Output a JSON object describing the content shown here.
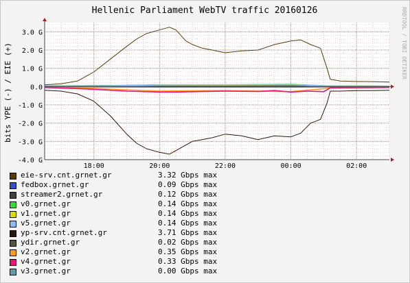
{
  "chart_data": {
    "type": "area",
    "title": "Hellenic Parliament WebTV traffic 20160126",
    "ylabel": "bits YPE (-) / EIE (+)",
    "watermark": "RRDTOOL / TOBI OETIKER",
    "ylim": [
      -4.0,
      3.5
    ],
    "yticks": [
      3.0,
      2.0,
      1.0,
      0.0,
      -1.0,
      -2.0,
      -3.0,
      -4.0
    ],
    "ytick_labels": [
      "3.0 G",
      "2.0 G",
      "1.0 G",
      "0.0",
      "-1.0 G",
      "-2.0 G",
      "-3.0 G",
      "-4.0 G"
    ],
    "xlim_hours": [
      16.5,
      27.0
    ],
    "xticks_hours": [
      18,
      20,
      22,
      24,
      26
    ],
    "xtick_labels": [
      "18:00",
      "20:00",
      "22:00",
      "00:00",
      "02:00"
    ],
    "grid": true,
    "legend_position": "bottom",
    "series": [
      {
        "name": "eie-srv.cnt.grnet.gr",
        "color": "#5a3a0a",
        "max": "3.32 Gbps max",
        "x": [
          16.5,
          17.0,
          17.5,
          18.0,
          18.5,
          19.0,
          19.3,
          19.6,
          20.0,
          20.3,
          20.5,
          20.8,
          21.0,
          21.3,
          21.6,
          22.0,
          22.5,
          23.0,
          23.5,
          24.0,
          24.3,
          24.6,
          24.9,
          25.1,
          25.2,
          25.5,
          26.0,
          26.5,
          27.0
        ],
        "y": [
          0.1,
          0.15,
          0.3,
          0.8,
          1.5,
          2.2,
          2.6,
          2.9,
          3.1,
          3.25,
          3.1,
          2.5,
          2.3,
          2.1,
          2.0,
          1.85,
          1.95,
          2.0,
          2.3,
          2.5,
          2.55,
          2.3,
          2.1,
          1.0,
          0.4,
          0.3,
          0.28,
          0.27,
          0.25
        ]
      },
      {
        "name": "fedbox.grnet.gr",
        "color": "#3050d0",
        "max": "0.09 Gbps max",
        "x": [
          16.5,
          18.0,
          20.0,
          22.0,
          24.0,
          25.2,
          27.0
        ],
        "y": [
          0.03,
          0.05,
          0.07,
          0.07,
          0.07,
          0.03,
          0.02
        ]
      },
      {
        "name": "streamer2.grnet.gr",
        "color": "#404040",
        "max": "0.12 Gbps max",
        "x": [
          16.5,
          18.0,
          20.0,
          22.0,
          24.0,
          25.2,
          27.0
        ],
        "y": [
          0.02,
          0.03,
          0.05,
          0.06,
          0.06,
          0.03,
          0.02
        ]
      },
      {
        "name": "v0.grnet.gr",
        "color": "#33dd33",
        "max": "0.14 Gbps max",
        "x": [
          16.5,
          18.0,
          20.0,
          22.0,
          24.0,
          25.2,
          27.0
        ],
        "y": [
          0.02,
          0.04,
          0.1,
          0.09,
          0.12,
          0.03,
          0.02
        ]
      },
      {
        "name": "v1.grnet.gr",
        "color": "#dddd00",
        "max": "0.14 Gbps max",
        "x": [
          16.5,
          18.0,
          20.0,
          22.0,
          24.0,
          25.2,
          27.0
        ],
        "y": [
          0.02,
          0.03,
          0.08,
          0.08,
          0.1,
          0.03,
          0.02
        ]
      },
      {
        "name": "v5.grnet.gr",
        "color": "#88bbff",
        "max": "0.14 Gbps max",
        "x": [
          16.5,
          18.0,
          20.0,
          22.0,
          24.0,
          25.2,
          27.0
        ],
        "y": [
          0.02,
          0.03,
          0.09,
          0.1,
          0.11,
          0.03,
          0.02
        ]
      },
      {
        "name": "yp-srv.cnt.grnet.gr",
        "color": "#2a1808",
        "max": "3.71 Gbps max",
        "x": [
          16.5,
          17.0,
          17.5,
          18.0,
          18.5,
          19.0,
          19.3,
          19.6,
          20.0,
          20.3,
          20.5,
          20.8,
          21.0,
          21.3,
          21.6,
          22.0,
          22.5,
          23.0,
          23.5,
          24.0,
          24.3,
          24.6,
          24.9,
          25.1,
          25.2,
          25.5,
          26.0,
          26.5,
          27.0
        ],
        "y": [
          -0.2,
          -0.25,
          -0.4,
          -0.8,
          -1.6,
          -2.6,
          -3.1,
          -3.4,
          -3.6,
          -3.7,
          -3.5,
          -3.2,
          -3.0,
          -2.9,
          -2.8,
          -2.6,
          -2.7,
          -2.9,
          -2.7,
          -2.75,
          -2.55,
          -2.0,
          -1.8,
          -0.9,
          -0.25,
          -0.25,
          -0.22,
          -0.22,
          -0.2
        ]
      },
      {
        "name": "ydir.grnet.gr",
        "color": "#555544",
        "max": "0.02 Gbps max",
        "x": [
          16.5,
          20.0,
          24.0,
          27.0
        ],
        "y": [
          -0.01,
          -0.02,
          -0.02,
          -0.01
        ]
      },
      {
        "name": "v2.grnet.gr",
        "color": "#ff9922",
        "max": "0.35 Gbps max",
        "x": [
          16.5,
          18.0,
          20.0,
          22.0,
          24.0,
          25.2,
          27.0
        ],
        "y": [
          -0.05,
          -0.1,
          -0.25,
          -0.22,
          -0.28,
          -0.08,
          -0.05
        ]
      },
      {
        "name": "v4.grnet.gr",
        "color": "#ee1177",
        "max": "0.33 Gbps max",
        "x": [
          16.5,
          17.0,
          18.0,
          19.0,
          20.0,
          20.5,
          21.0,
          22.0,
          23.0,
          23.5,
          24.0,
          24.5,
          25.0,
          25.2,
          26.0,
          27.0
        ],
        "y": [
          -0.05,
          -0.08,
          -0.15,
          -0.25,
          -0.3,
          -0.3,
          -0.28,
          -0.25,
          -0.27,
          -0.22,
          -0.3,
          -0.25,
          -0.28,
          -0.07,
          -0.06,
          -0.05
        ]
      },
      {
        "name": "v3.grnet.gr",
        "color": "#6699aa",
        "max": "0.00 Gbps max",
        "x": [
          16.5,
          27.0
        ],
        "y": [
          0.0,
          0.0
        ]
      }
    ]
  }
}
